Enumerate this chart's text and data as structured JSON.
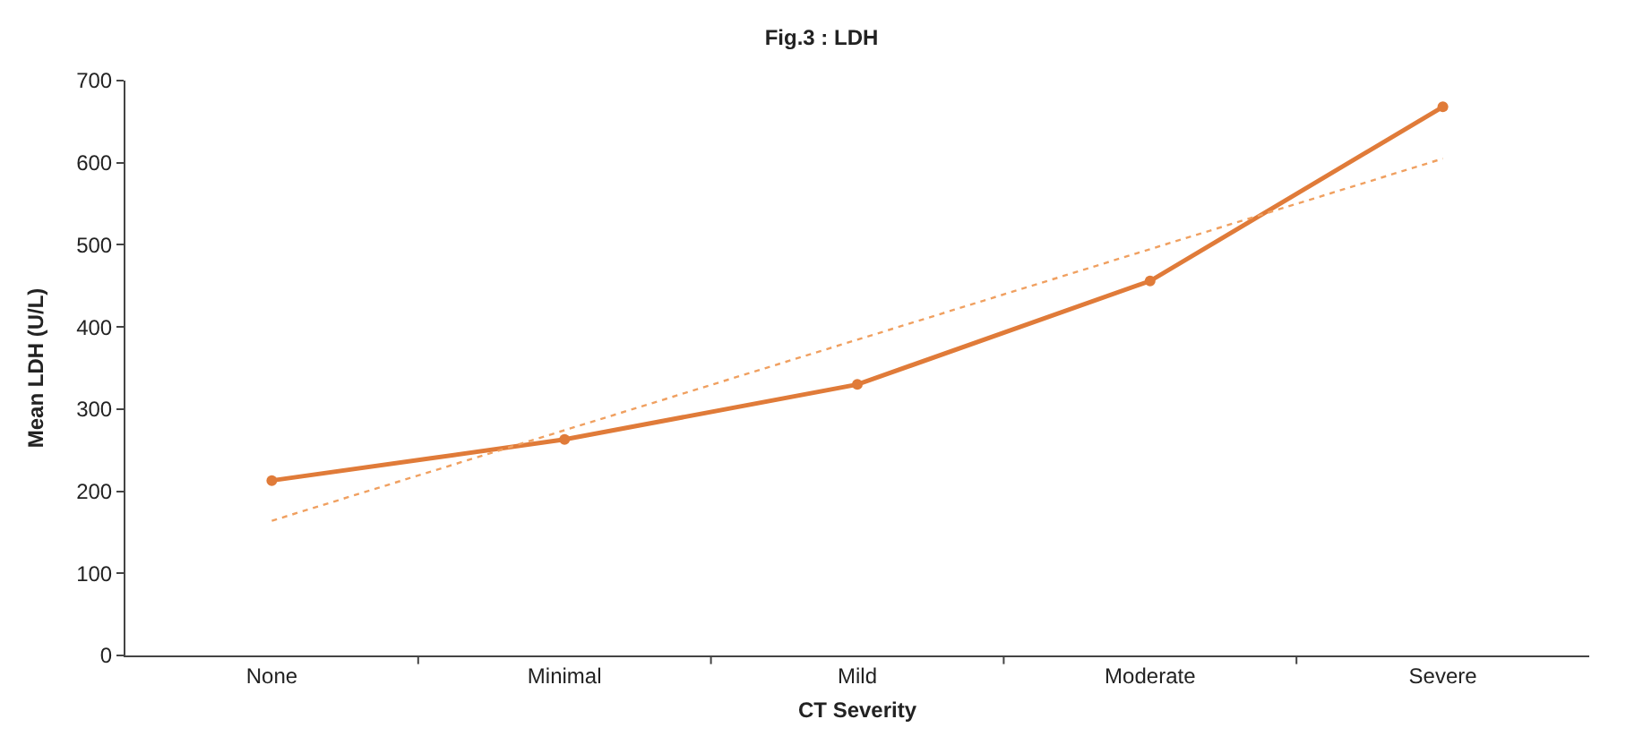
{
  "chart_data": {
    "type": "line",
    "title": "Fig.3 : LDH",
    "xlabel": "CT Severity",
    "ylabel": "Mean LDH (U/L)",
    "categories": [
      "None",
      "Minimal",
      "Mild",
      "Moderate",
      "Severe"
    ],
    "series": [
      {
        "color": "#e07b39",
        "values": [
          213,
          263,
          330,
          456,
          668
        ],
        "marker": "circle",
        "line_style": "solid"
      },
      {
        "type": "line",
        "color": "#f0a060",
        "x": [
          "None",
          "Severe"
        ],
        "values": [
          164,
          605
        ],
        "marker": "none",
        "line_style": "dotted"
      }
    ],
    "ylim": [
      0,
      700
    ],
    "yticks": [
      0,
      100,
      200,
      300,
      400,
      500,
      600,
      700
    ]
  }
}
